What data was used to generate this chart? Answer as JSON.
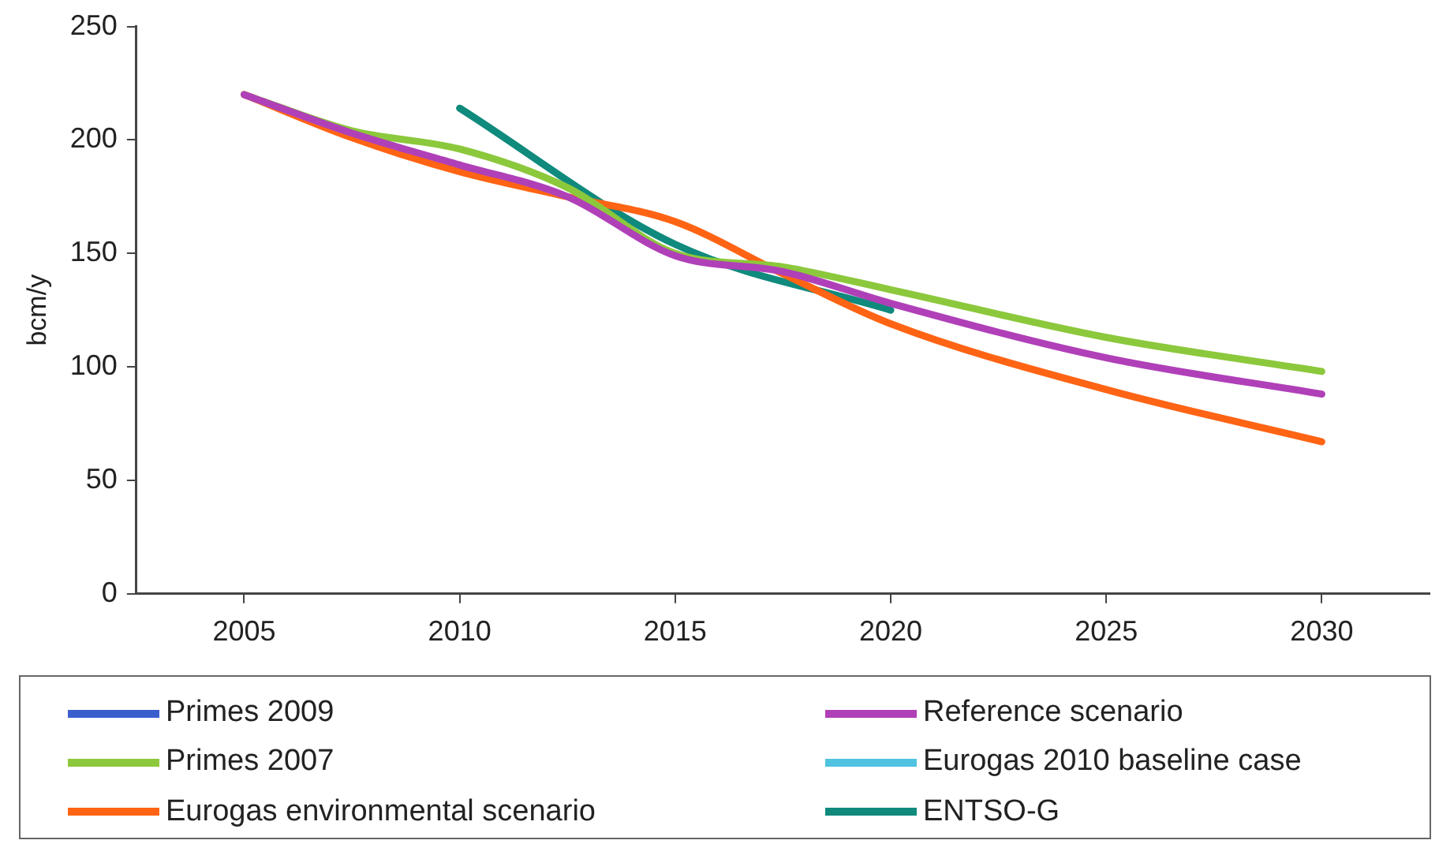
{
  "chart_data": {
    "type": "line",
    "ylabel": "bcm/y",
    "xlim": [
      2002.5,
      2032.5
    ],
    "xticks": [
      2005,
      2010,
      2015,
      2020,
      2025,
      2030
    ],
    "ylim": [
      0,
      250
    ],
    "yticks": [
      0,
      50,
      100,
      150,
      200,
      250
    ],
    "grid": false,
    "legend": "bottom",
    "marker": "none",
    "line_style": "solid",
    "x": [
      2005,
      2007.5,
      2010,
      2012.5,
      2015,
      2017.5,
      2020,
      2025,
      2030
    ],
    "series": [
      {
        "name": "Primes 2009",
        "color": "#3a5fcd",
        "values": [
          null,
          null,
          null,
          null,
          null,
          null,
          null,
          null,
          null
        ]
      },
      {
        "name": "Reference scenario",
        "color": "#b040b8",
        "values": [
          220,
          203,
          189,
          175,
          149,
          142,
          128,
          104,
          88
        ]
      },
      {
        "name": "Primes 2007",
        "color": "#8cc83c",
        "values": [
          220,
          204,
          196,
          179,
          150,
          144,
          134,
          113,
          98
        ]
      },
      {
        "name": "Eurogas 2010 baseline case",
        "color": "#4fc3e0",
        "values": [
          null,
          null,
          null,
          null,
          null,
          null,
          null,
          null,
          null
        ]
      },
      {
        "name": "Eurogas environmental scenario",
        "color": "#ff6414",
        "values": [
          220,
          201,
          186,
          175,
          164,
          141,
          119,
          90,
          67
        ]
      },
      {
        "name": "ENTSO-G",
        "color": "#0f8a7c",
        "x": [
          2010,
          2015,
          2020
        ],
        "values": [
          214,
          154,
          125
        ]
      }
    ]
  }
}
